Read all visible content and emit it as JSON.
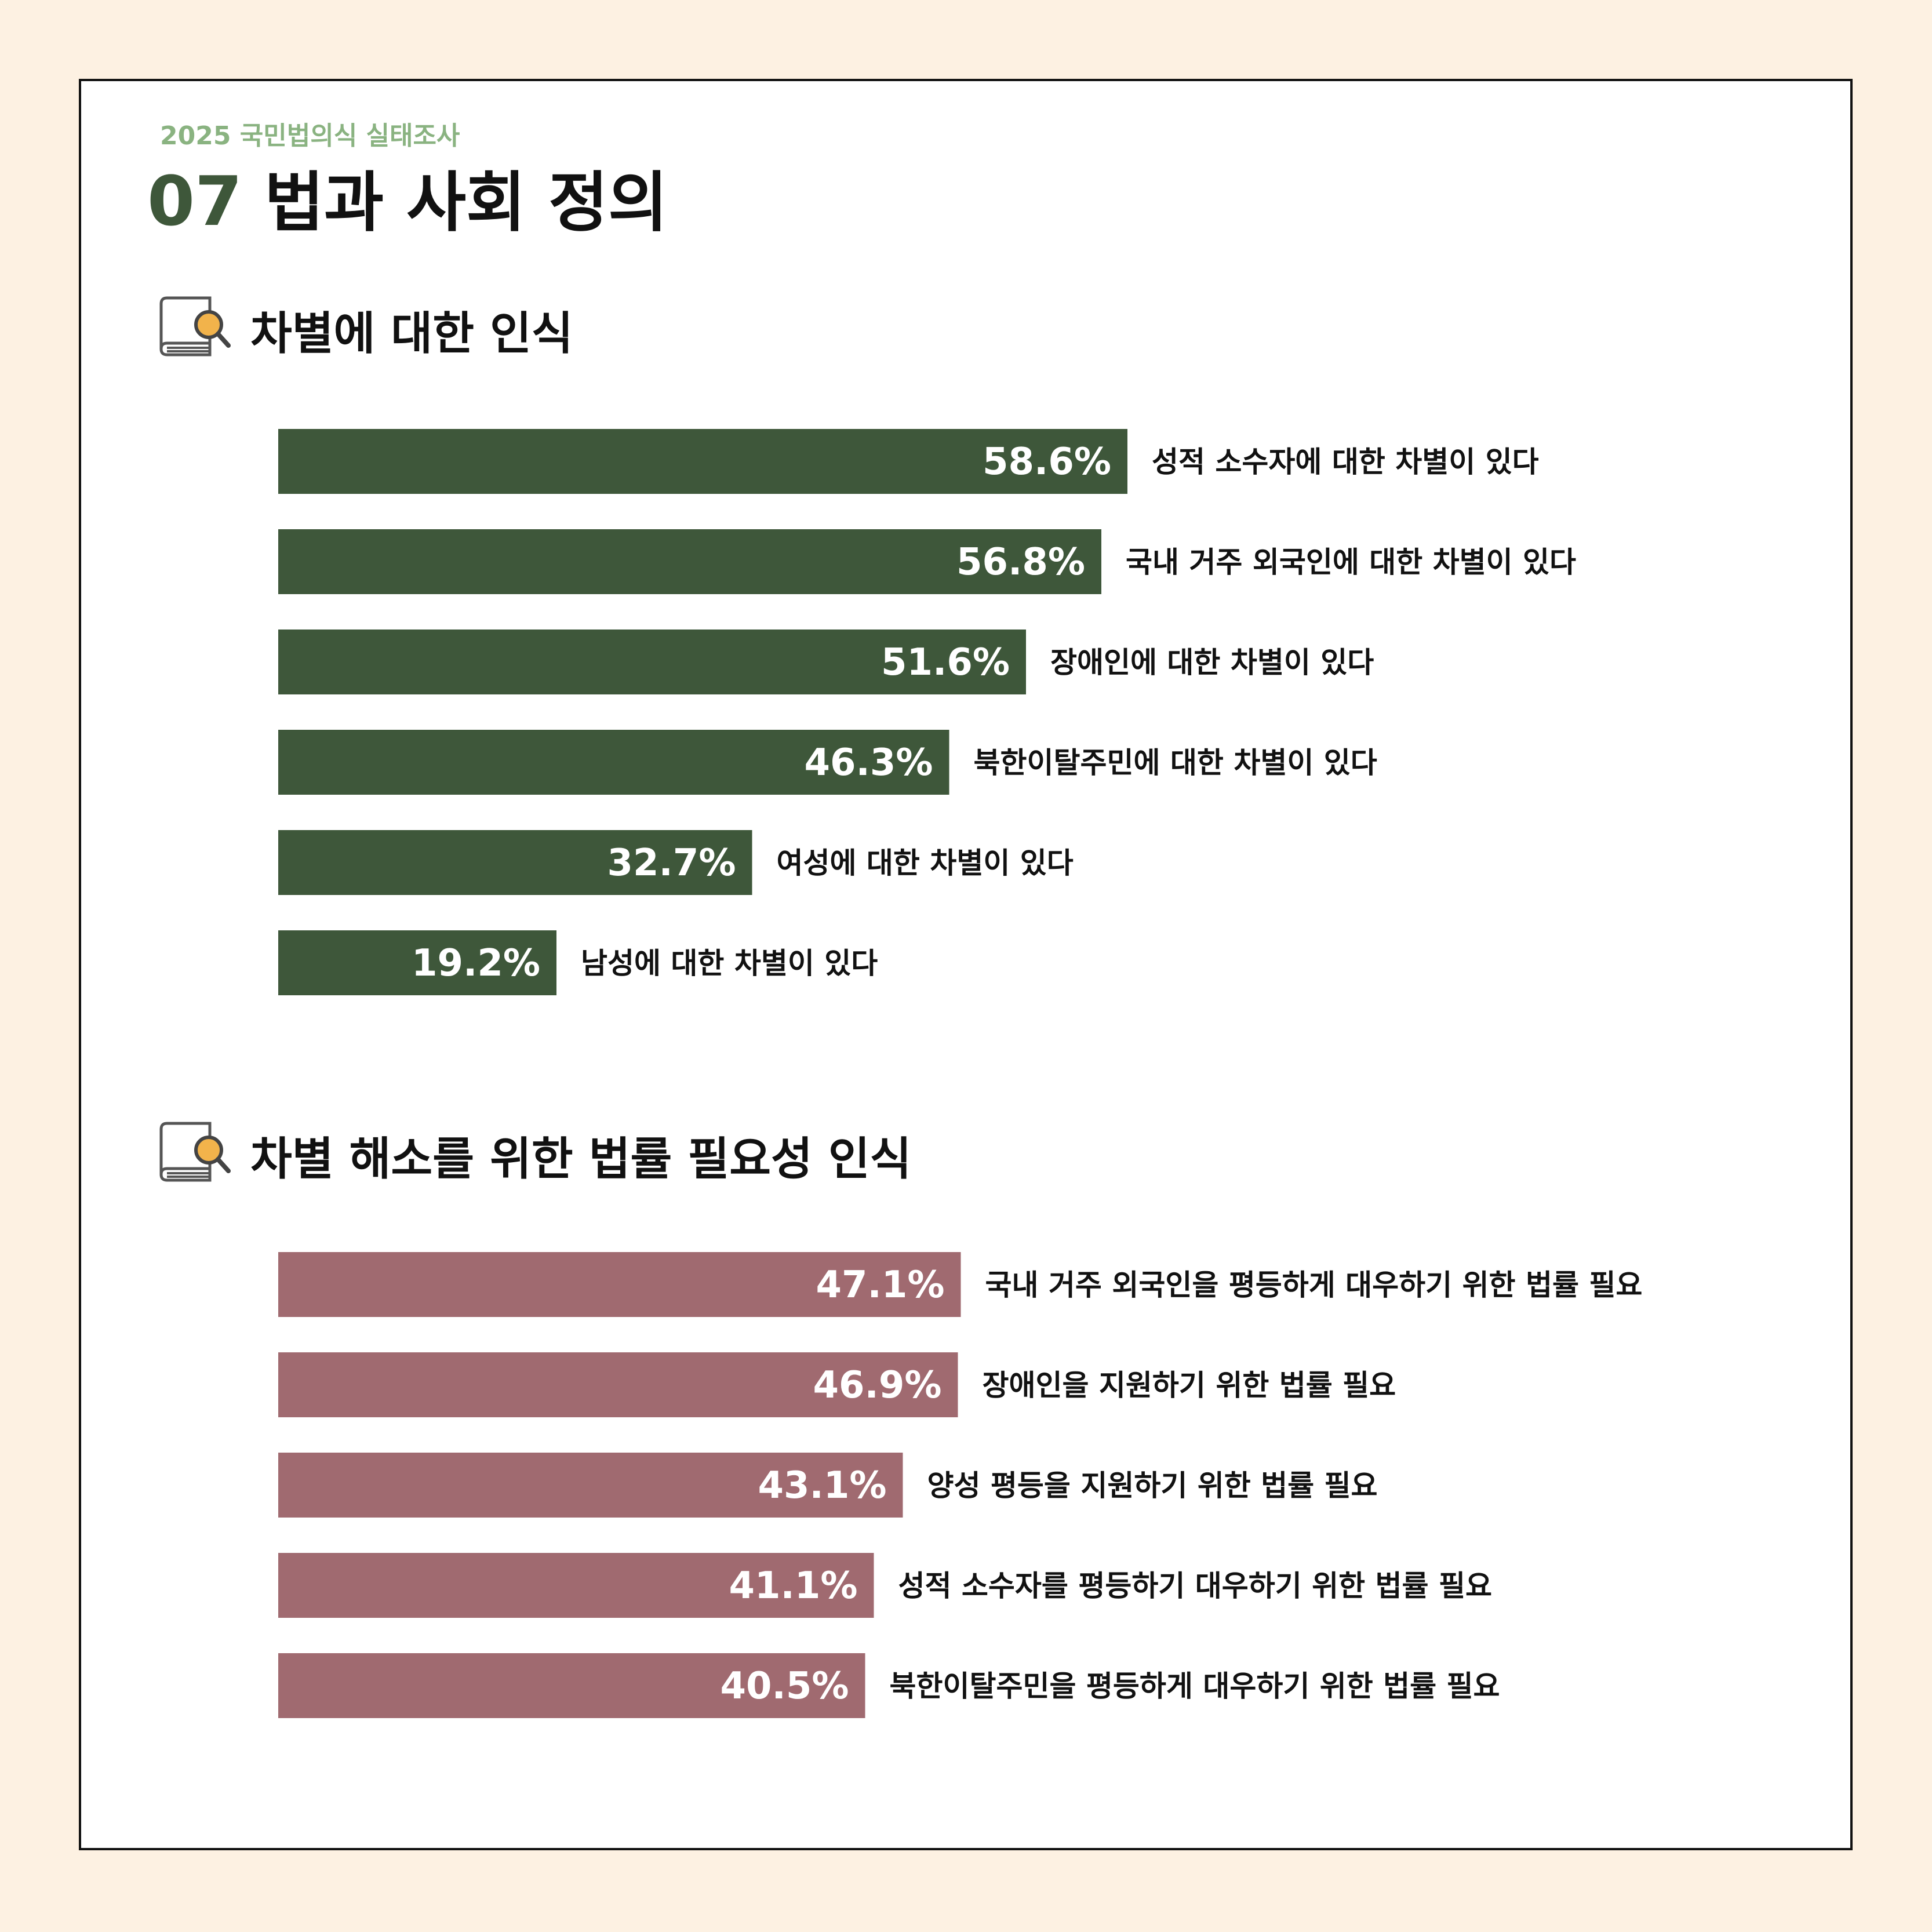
{
  "header": {
    "survey_label": "2025 국민법의식 실태조사",
    "section_number": "07",
    "page_title": "법과 사회 정의"
  },
  "icons": {
    "section_icon": "book-magnifier-icon"
  },
  "colors": {
    "background": "#fdf1e2",
    "accent_green": "#3e573a",
    "accent_rose": "#a06a70",
    "survey_label_green": "#8ab381"
  },
  "chart_data": [
    {
      "type": "bar",
      "orientation": "horizontal",
      "title": "차별에 대한 인식",
      "categories": [
        "성적 소수자에 대한 차별이 있다",
        "국내 거주 외국인에 대한 차별이 있다",
        "장애인에 대한 차별이 있다",
        "북한이탈주민에 대한 차별이 있다",
        "여성에 대한 차별이 있다",
        "남성에 대한 차별이 있다"
      ],
      "values": [
        58.6,
        56.8,
        51.6,
        46.3,
        32.7,
        19.2
      ],
      "value_labels": [
        "58.6%",
        "56.8%",
        "51.6%",
        "46.3%",
        "32.7%",
        "19.2%"
      ],
      "unit": "%",
      "xlim": [
        0,
        100
      ],
      "grid": false,
      "bar_color": "#3e573a"
    },
    {
      "type": "bar",
      "orientation": "horizontal",
      "title": "차별 해소를 위한 법률 필요성 인식",
      "categories": [
        "국내 거주 외국인을 평등하게 대우하기 위한 법률 필요",
        "장애인을 지원하기 위한 법률 필요",
        "양성 평등을 지원하기 위한 법률 필요",
        "성적 소수자를 평등하기 대우하기 위한 법률 필요",
        "북한이탈주민을 평등하게 대우하기 위한 법률 필요"
      ],
      "values": [
        47.1,
        46.9,
        43.1,
        41.1,
        40.5
      ],
      "value_labels": [
        "47.1%",
        "46.9%",
        "43.1%",
        "41.1%",
        "40.5%"
      ],
      "unit": "%",
      "xlim": [
        0,
        100
      ],
      "grid": false,
      "bar_color": "#a06a70"
    }
  ]
}
